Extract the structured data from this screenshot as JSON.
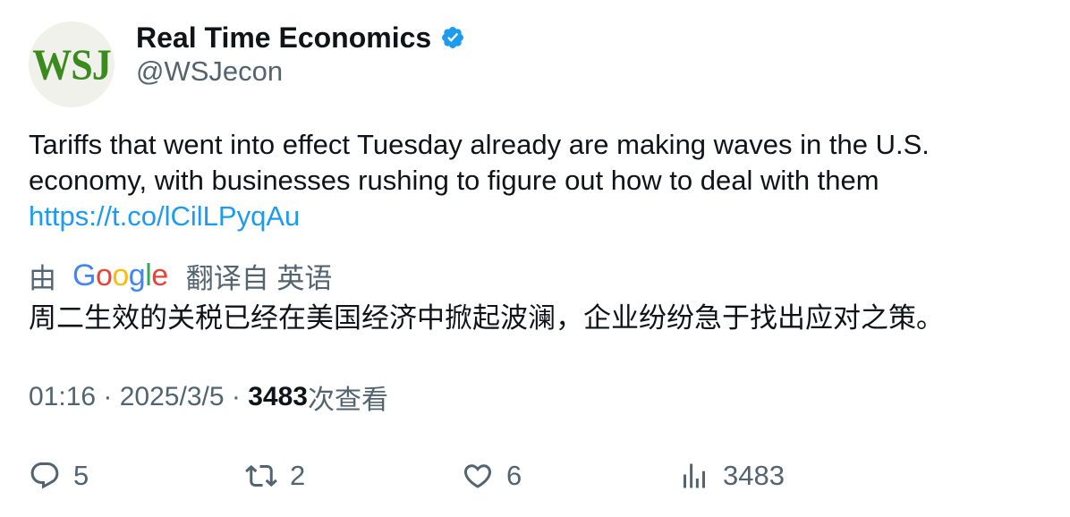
{
  "author": {
    "avatar_text": "WSJ",
    "name": "Real Time Economics",
    "handle": "@WSJecon"
  },
  "tweet": {
    "text": "Tariffs that went into effect Tuesday already are making waves in the U.S. economy, with businesses rushing to figure out how to deal with them",
    "link": "https://t.co/lCilLPyqAu"
  },
  "translation": {
    "prefix": "由",
    "provider": "Google",
    "suffix": "翻译自 英语",
    "text": "周二生效的关税已经在美国经济中掀起波澜，企业纷纷急于找出应对之策。"
  },
  "meta": {
    "time": "01:16",
    "separator": " · ",
    "date": "2025/3/5",
    "views": "3483",
    "views_label": "次查看"
  },
  "actions": {
    "replies": "5",
    "retweets": "2",
    "likes": "6",
    "views": "3483"
  },
  "colors": {
    "link": "#1d9bf0",
    "verified": "#1d9bf0",
    "wsj_green": "#3b8a1e",
    "secondary_text": "#536471"
  },
  "icons": [
    "verified-badge-icon",
    "reply-icon",
    "retweet-icon",
    "like-icon",
    "views-icon"
  ]
}
